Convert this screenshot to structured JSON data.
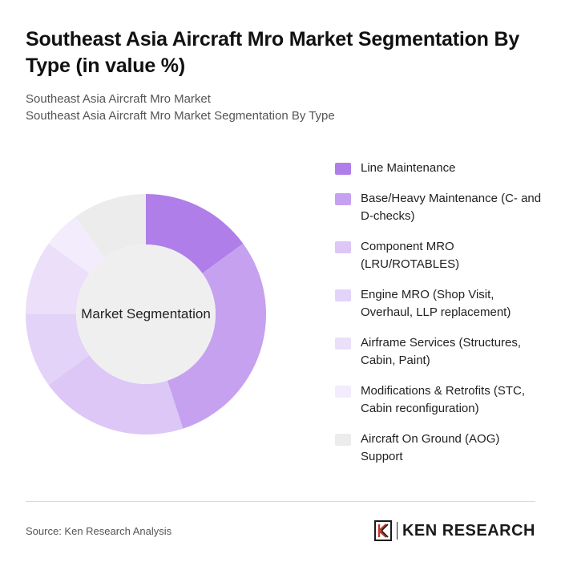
{
  "title": "Southeast Asia Aircraft Mro Market Segmentation By Type (in value %)",
  "subtitle_line1": "Southeast Asia Aircraft Mro Market",
  "subtitle_line2": "Southeast Asia Aircraft Mro Market Segmentation By Type",
  "center_label": "Market Segmentation",
  "source": "Source: Ken Research Analysis",
  "logo_text": "KEN RESEARCH",
  "chart_data": {
    "type": "pie",
    "donut": true,
    "categories": [
      "Line Maintenance",
      "Base/Heavy Maintenance (C- and D-checks)",
      "Component MRO (LRU/ROTABLES)",
      "Engine MRO (Shop Visit, Overhaul, LLP replacement)",
      "Airframe Services (Structures, Cabin, Paint)",
      "Modifications & Retrofits (STC, Cabin reconfiguration)",
      "Aircraft On Ground (AOG) Support"
    ],
    "values": [
      15,
      30,
      20,
      10,
      10,
      5,
      10
    ],
    "colors": [
      "#b07ee8",
      "#c5a1f0",
      "#dcc7f6",
      "#e3d3f8",
      "#ebdff9",
      "#f3ecfc",
      "#ececec"
    ],
    "legend_position": "right"
  }
}
